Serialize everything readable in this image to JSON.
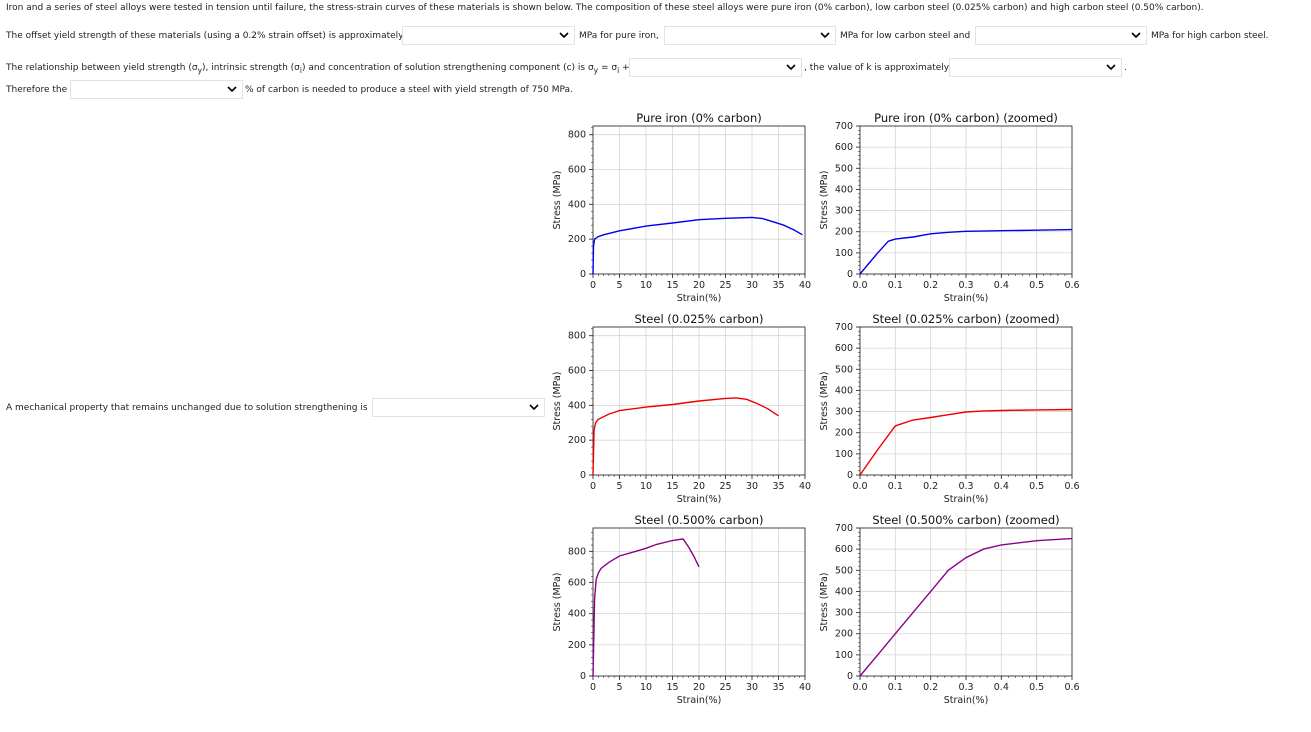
{
  "questions": {
    "intro": "Iron and a series of steel alloys were tested in tension until failure, the stress-strain curves of these materials is shown below. The composition of these steel alloys were pure iron (0% carbon), low carbon steel (0.025% carbon) and high carbon steel (0.50% carbon).",
    "q1_prefix": "The offset yield strength of these materials (using a 0.2% strain offset) is approximately",
    "q1_after1": "MPa for pure iron,",
    "q1_after2": "MPa for low carbon steel and",
    "q1_after3": "MPa for high carbon steel.",
    "q2_prefix_a": "The relationship between yield strength (σ",
    "q2_sub_y": "y",
    "q2_prefix_b": "), intrinsic strength (σ",
    "q2_sub_i": "i",
    "q2_prefix_c": ") and concentration of solution strengthening component (c) is σ",
    "q2_sub_y2": "y",
    "q2_prefix_d": " = σ",
    "q2_sub_i2": "i",
    "q2_prefix_e": " +k",
    "q2_after": ", the value of k is approximately",
    "q3_prefix": "Therefore the",
    "q3_after": "% of carbon is needed to produce a steel with yield strength of 750 MPa.",
    "q4_prefix": "A mechanical property that remains unchanged due to solution strengthening is",
    "dropdown_values": [
      "",
      "",
      "",
      "",
      "",
      "",
      "",
      ""
    ]
  },
  "colors": {
    "pure": "#0000ee",
    "low": "#ee0000",
    "high": "#8b008b"
  },
  "chart_data": [
    {
      "type": "line",
      "title": "Pure iron (0% carbon)",
      "xlabel": "Strain(%)",
      "ylabel": "Stress (MPa)",
      "xlim": [
        0,
        40
      ],
      "ylim": [
        0,
        850
      ],
      "xticks": [
        0,
        5,
        10,
        15,
        20,
        25,
        30,
        35,
        40
      ],
      "yticks": [
        0,
        200,
        400,
        600,
        800
      ],
      "color": "#0000ee",
      "series": [
        {
          "x": [
            0,
            0.1,
            0.3,
            1,
            2,
            5,
            10,
            15,
            20,
            25,
            30,
            32,
            34,
            36,
            38,
            39.5
          ],
          "y": [
            0,
            160,
            200,
            215,
            225,
            248,
            275,
            293,
            312,
            320,
            325,
            318,
            300,
            280,
            252,
            225
          ]
        }
      ]
    },
    {
      "type": "line",
      "title": "Pure iron (0% carbon) (zoomed)",
      "xlabel": "Strain(%)",
      "ylabel": "Stress (MPa)",
      "xlim": [
        0,
        0.6
      ],
      "ylim": [
        0,
        700
      ],
      "xticks": [
        0.0,
        0.1,
        0.2,
        0.3,
        0.4,
        0.5,
        0.6
      ],
      "yticks": [
        0,
        100,
        200,
        300,
        400,
        500,
        600,
        700
      ],
      "color": "#0000ee",
      "series": [
        {
          "x": [
            0,
            0.05,
            0.08,
            0.1,
            0.15,
            0.2,
            0.25,
            0.3,
            0.4,
            0.5,
            0.6
          ],
          "y": [
            0,
            100,
            155,
            165,
            175,
            190,
            197,
            202,
            205,
            207,
            210
          ]
        }
      ]
    },
    {
      "type": "line",
      "title": "Steel (0.025% carbon)",
      "xlabel": "Strain(%)",
      "ylabel": "Stress (MPa)",
      "xlim": [
        0,
        40
      ],
      "ylim": [
        0,
        850
      ],
      "xticks": [
        0,
        5,
        10,
        15,
        20,
        25,
        30,
        35,
        40
      ],
      "yticks": [
        0,
        200,
        400,
        600,
        800
      ],
      "color": "#ee0000",
      "series": [
        {
          "x": [
            0,
            0.2,
            0.5,
            1,
            3,
            5,
            10,
            15,
            20,
            25,
            27,
            29,
            31,
            33,
            35
          ],
          "y": [
            0,
            260,
            300,
            320,
            350,
            370,
            390,
            405,
            425,
            440,
            443,
            435,
            410,
            380,
            340
          ]
        }
      ]
    },
    {
      "type": "line",
      "title": "Steel (0.025% carbon) (zoomed)",
      "xlabel": "Strain(%)",
      "ylabel": "Stress (MPa)",
      "xlim": [
        0,
        0.6
      ],
      "ylim": [
        0,
        700
      ],
      "xticks": [
        0.0,
        0.1,
        0.2,
        0.3,
        0.4,
        0.5,
        0.6
      ],
      "yticks": [
        0,
        100,
        200,
        300,
        400,
        500,
        600,
        700
      ],
      "color": "#ee0000",
      "series": [
        {
          "x": [
            0,
            0.05,
            0.1,
            0.15,
            0.2,
            0.25,
            0.3,
            0.35,
            0.4,
            0.5,
            0.6
          ],
          "y": [
            0,
            120,
            232,
            260,
            272,
            285,
            298,
            303,
            305,
            308,
            310
          ]
        }
      ]
    },
    {
      "type": "line",
      "title": "Steel (0.500% carbon)",
      "xlabel": "Strain(%)",
      "ylabel": "Stress (MPa)",
      "xlim": [
        0,
        40
      ],
      "ylim": [
        0,
        950
      ],
      "xticks": [
        0,
        5,
        10,
        15,
        20,
        25,
        30,
        35,
        40
      ],
      "yticks": [
        0,
        200,
        400,
        600,
        800
      ],
      "color": "#8b008b",
      "series": [
        {
          "x": [
            0,
            0.3,
            0.6,
            1,
            1.5,
            3,
            5,
            8,
            10,
            12,
            15,
            17,
            18,
            19,
            20
          ],
          "y": [
            0,
            500,
            620,
            660,
            690,
            730,
            770,
            800,
            820,
            845,
            870,
            880,
            830,
            770,
            700
          ]
        }
      ]
    },
    {
      "type": "line",
      "title": "Steel (0.500% carbon) (zoomed)",
      "xlabel": "Strain(%)",
      "ylabel": "Stress (MPa)",
      "xlim": [
        0,
        0.6
      ],
      "ylim": [
        0,
        700
      ],
      "xticks": [
        0.0,
        0.1,
        0.2,
        0.3,
        0.4,
        0.5,
        0.6
      ],
      "yticks": [
        0,
        100,
        200,
        300,
        400,
        500,
        600,
        700
      ],
      "color": "#8b008b",
      "series": [
        {
          "x": [
            0,
            0.05,
            0.1,
            0.15,
            0.2,
            0.25,
            0.3,
            0.35,
            0.4,
            0.45,
            0.5,
            0.55,
            0.6
          ],
          "y": [
            0,
            100,
            200,
            300,
            400,
            500,
            560,
            600,
            620,
            630,
            640,
            645,
            650
          ]
        }
      ]
    }
  ]
}
